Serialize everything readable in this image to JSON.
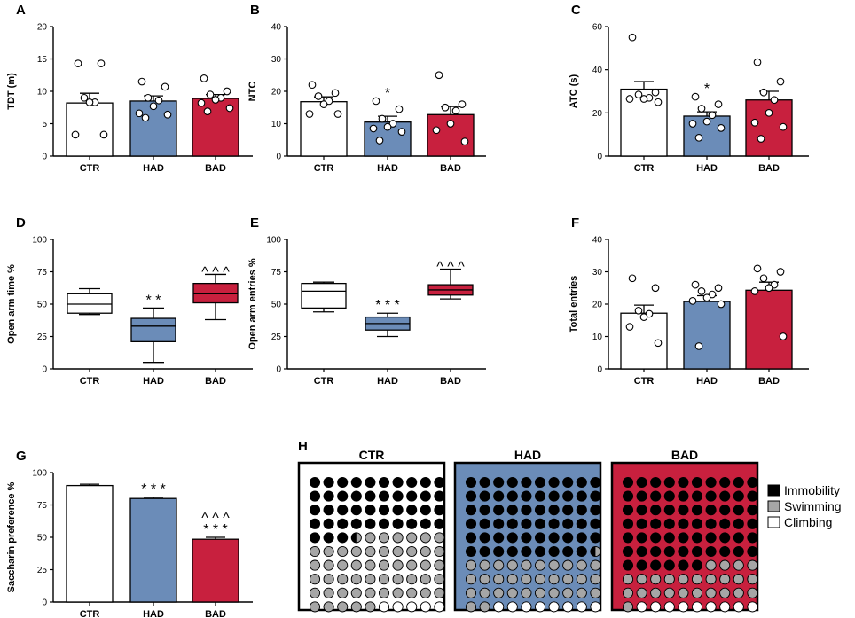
{
  "colors": {
    "CTR": "#ffffff",
    "HAD": "#6b8cb8",
    "BAD": "#c8203e",
    "immobility": "#000000",
    "swimming": "#a6a6a6",
    "climbing": "#ffffff"
  },
  "chart_data": [
    {
      "panel": "A",
      "type": "bar",
      "title": "",
      "ylabel": "TDT (m)",
      "categories": [
        "CTR",
        "HAD",
        "BAD"
      ],
      "ylim": [
        0,
        20
      ],
      "yticks": [
        0,
        5,
        10,
        15,
        20
      ],
      "means": [
        8.2,
        8.5,
        8.9
      ],
      "sem": [
        1.5,
        0.8,
        0.6
      ],
      "points": [
        [
          14.3,
          14.3,
          9,
          8.3,
          8.3,
          3.3,
          3.3
        ],
        [
          11.5,
          10.7,
          9,
          8.6,
          7.7,
          6.6,
          6.4,
          5.9
        ],
        [
          12,
          10,
          9.5,
          9,
          8.7,
          8.2,
          7.4,
          6.9
        ]
      ],
      "annotations": [
        "",
        "",
        ""
      ]
    },
    {
      "panel": "B",
      "type": "bar",
      "title": "",
      "ylabel": "NTC",
      "categories": [
        "CTR",
        "HAD",
        "BAD"
      ],
      "ylim": [
        0,
        40
      ],
      "yticks": [
        0,
        10,
        20,
        30,
        40
      ],
      "means": [
        16.8,
        10.5,
        12.8
      ],
      "sem": [
        1.5,
        1.8,
        2.5
      ],
      "points": [
        [
          22,
          19.5,
          18.5,
          17,
          16,
          13,
          13
        ],
        [
          17,
          14.5,
          11.5,
          10,
          9,
          8.5,
          7.5,
          4.8
        ],
        [
          25,
          16,
          15,
          14,
          10,
          8,
          4.5
        ]
      ],
      "annotations": [
        "",
        "*",
        ""
      ]
    },
    {
      "panel": "C",
      "type": "bar",
      "title": "",
      "ylabel": "ATC (s)",
      "categories": [
        "CTR",
        "HAD",
        "BAD"
      ],
      "ylim": [
        0,
        60
      ],
      "yticks": [
        0,
        20,
        40,
        60
      ],
      "means": [
        31,
        18.5,
        26
      ],
      "sem": [
        3.5,
        2,
        4
      ],
      "points": [
        [
          55,
          29.5,
          28.5,
          27,
          26.5,
          26.5,
          25
        ],
        [
          27.5,
          24,
          22,
          19,
          16,
          15,
          13,
          8.5
        ],
        [
          43.5,
          34.5,
          29.5,
          26,
          20,
          15.5,
          13.5,
          8
        ]
      ],
      "annotations": [
        "",
        "*",
        ""
      ]
    },
    {
      "panel": "D",
      "type": "boxplot",
      "title": "",
      "ylabel": "Open arm time %",
      "categories": [
        "CTR",
        "HAD",
        "BAD"
      ],
      "ylim": [
        0,
        100
      ],
      "yticks": [
        0,
        25,
        50,
        75,
        100
      ],
      "boxes": [
        {
          "min": 42,
          "q1": 43,
          "median": 50,
          "q3": 58,
          "max": 62
        },
        {
          "min": 5,
          "q1": 21,
          "median": 33,
          "q3": 39,
          "max": 47
        },
        {
          "min": 38,
          "q1": 51,
          "median": 58,
          "q3": 66,
          "max": 73
        }
      ],
      "annotations": [
        "",
        "* *",
        "^ ^ ^"
      ]
    },
    {
      "panel": "E",
      "type": "boxplot",
      "title": "",
      "ylabel": "Open arm entries %",
      "categories": [
        "CTR",
        "HAD",
        "BAD"
      ],
      "ylim": [
        0,
        100
      ],
      "yticks": [
        0,
        25,
        50,
        75,
        100
      ],
      "boxes": [
        {
          "min": 44,
          "q1": 47,
          "median": 60,
          "q3": 66,
          "max": 67
        },
        {
          "min": 25,
          "q1": 30,
          "median": 35,
          "q3": 40,
          "max": 43
        },
        {
          "min": 54,
          "q1": 57,
          "median": 61,
          "q3": 65,
          "max": 77
        }
      ],
      "annotations": [
        "",
        "* * *",
        "^ ^ ^"
      ]
    },
    {
      "panel": "F",
      "type": "bar",
      "title": "",
      "ylabel": "Total entries",
      "categories": [
        "CTR",
        "HAD",
        "BAD"
      ],
      "ylim": [
        0,
        40
      ],
      "yticks": [
        0,
        10,
        20,
        30,
        40
      ],
      "means": [
        17.2,
        20.8,
        24.3
      ],
      "sem": [
        2.5,
        1.8,
        2.5
      ],
      "points": [
        [
          28,
          25,
          18,
          17,
          16,
          13,
          8
        ],
        [
          26,
          25,
          24,
          23,
          22,
          21,
          20,
          7
        ],
        [
          31,
          30,
          28,
          26,
          25,
          24,
          10
        ]
      ],
      "annotations": [
        "",
        "",
        ""
      ]
    },
    {
      "panel": "G",
      "type": "bar",
      "title": "",
      "ylabel": "Saccharin preference %",
      "categories": [
        "CTR",
        "HAD",
        "BAD"
      ],
      "ylim": [
        0,
        100
      ],
      "yticks": [
        0,
        25,
        50,
        75,
        100
      ],
      "means": [
        90,
        80,
        48.5
      ],
      "sem": [
        1,
        1,
        1.5
      ],
      "points": [
        [],
        [],
        []
      ],
      "annotations": [
        "",
        "* * *",
        "^ ^ ^|* * *"
      ]
    },
    {
      "panel": "H",
      "type": "waffle",
      "title": "",
      "groups": [
        {
          "name": "CTR",
          "immobility": 43.5,
          "swimming": 51.5,
          "climbing": 5
        },
        {
          "name": "HAD",
          "immobility": 59.5,
          "swimming": 32.5,
          "climbing": 8
        },
        {
          "name": "BAD",
          "immobility": 66,
          "swimming": 25,
          "climbing": 9
        }
      ],
      "legend": [
        "Immobility",
        "Swimming",
        "Climbing"
      ]
    }
  ]
}
